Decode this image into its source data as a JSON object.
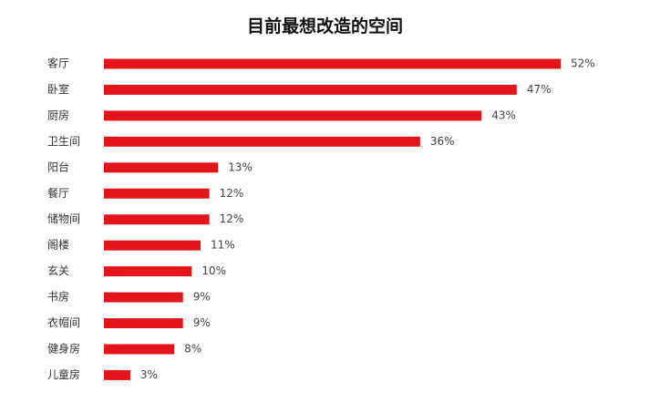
{
  "chart_data": {
    "type": "bar",
    "orientation": "horizontal",
    "title": "目前最想改造的空间",
    "categories": [
      "客厅",
      "卧室",
      "厨房",
      "卫生间",
      "阳台",
      "餐厅",
      "储物间",
      "阁楼",
      "玄关",
      "书房",
      "衣帽间",
      "健身房",
      "儿童房"
    ],
    "values": [
      52,
      47,
      43,
      36,
      13,
      12,
      12,
      11,
      10,
      9,
      9,
      8,
      3
    ],
    "value_labels": [
      "52%",
      "47%",
      "43%",
      "36%",
      "13%",
      "12%",
      "12%",
      "11%",
      "10%",
      "9%",
      "9%",
      "8%",
      "3%"
    ],
    "xlim": [
      0,
      52
    ],
    "grid": false,
    "legend": "none",
    "bar_color": "#e3151b"
  }
}
